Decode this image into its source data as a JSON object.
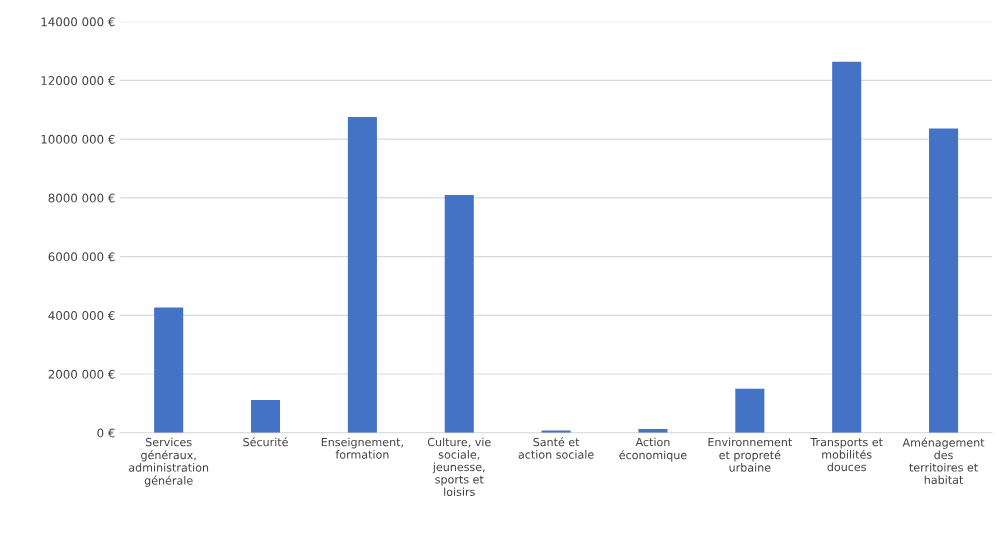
{
  "chart_data": {
    "type": "bar",
    "categories": [
      "Services généraux, administration générale",
      "Sécurité",
      "Enseignement, formation",
      "Culture, vie sociale, jeunesse, sports et loisirs",
      "Santé et action sociale",
      "Action économique",
      "Environnement et propreté urbaine",
      "Transports et mobilités douces",
      "Aménagement des territoires et habitat"
    ],
    "values": [
      4270000,
      1120000,
      10750000,
      8100000,
      80000,
      130000,
      1500000,
      12630000,
      10360000
    ],
    "color": "#4472c4",
    "ylim": [
      0,
      14000000
    ],
    "yticks": [
      {
        "value": 0,
        "label": "0 €"
      },
      {
        "value": 2000000,
        "label": "2000 000 €"
      },
      {
        "value": 4000000,
        "label": "4000 000 €"
      },
      {
        "value": 6000000,
        "label": "6000 000 €"
      },
      {
        "value": 8000000,
        "label": "8000 000 €"
      },
      {
        "value": 10000000,
        "label": "10000 000 €"
      },
      {
        "value": 12000000,
        "label": "12000 000 €"
      },
      {
        "value": 14000000,
        "label": "14000 000 €"
      }
    ],
    "grid": "y",
    "legend": false
  }
}
